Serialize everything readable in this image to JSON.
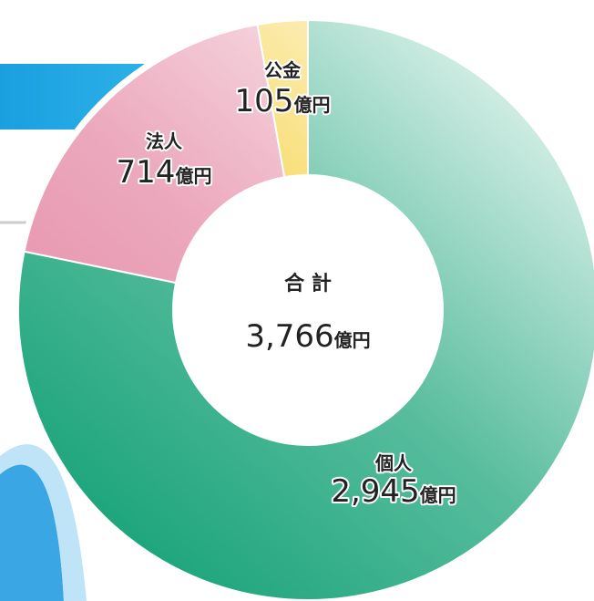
{
  "chart_data": {
    "type": "donut",
    "categories": [
      "個人",
      "法人",
      "公金"
    ],
    "values": [
      2945,
      714,
      105
    ],
    "value_labels": [
      "2,945",
      "714",
      "105"
    ],
    "unit": "億円",
    "colors": [
      "#1fa67c",
      "#e58ba7",
      "#f4c81a"
    ],
    "center_title": "合 計",
    "total": 3766,
    "total_label": "3,766"
  }
}
